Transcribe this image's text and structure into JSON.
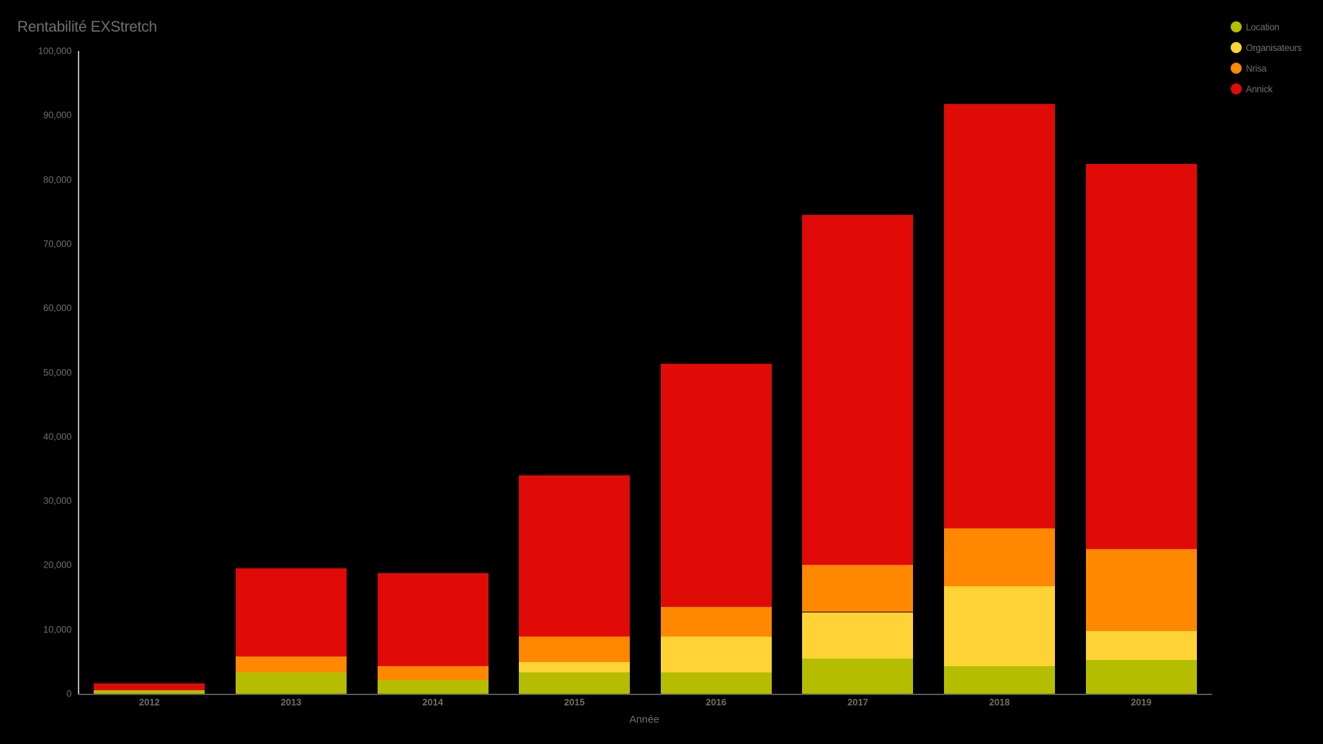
{
  "chart": {
    "title": "Rentabilité EXStretch",
    "xlabel": "Année",
    "yticks": [
      "0",
      "10,000",
      "20,000",
      "30,000",
      "40,000",
      "50,000",
      "60,000",
      "70,000",
      "80,000",
      "90,000",
      "100,000"
    ]
  },
  "legend": [
    {
      "label": "Location",
      "color": "#b5bd00"
    },
    {
      "label": "Organisateurs",
      "color": "#ffd335"
    },
    {
      "label": "Nrisa",
      "color": "#ff8800"
    },
    {
      "label": "Annick",
      "color": "#e00a06"
    }
  ],
  "chart_data": {
    "type": "bar",
    "stacked": true,
    "title": "Rentabilité EXStretch",
    "xlabel": "Année",
    "ylabel": "",
    "ylim": [
      0,
      100000
    ],
    "grid": false,
    "legend_position": "top-right",
    "categories": [
      "2012",
      "2013",
      "2014",
      "2015",
      "2016",
      "2017",
      "2018",
      "2019"
    ],
    "series": [
      {
        "name": "Location",
        "color": "#b5bd00",
        "values": [
          500,
          3300,
          2100,
          3300,
          3300,
          5500,
          4300,
          5300
        ]
      },
      {
        "name": "Organisateurs",
        "color": "#ffd335",
        "values": [
          0,
          0,
          0,
          1600,
          5600,
          7200,
          12400,
          4400
        ]
      },
      {
        "name": "Nrisa",
        "color": "#ff8800",
        "values": [
          0,
          2500,
          2200,
          4000,
          4600,
          7300,
          9000,
          12800
        ]
      },
      {
        "name": "Annick",
        "color": "#e00a06",
        "values": [
          1100,
          13700,
          14500,
          25100,
          37800,
          54500,
          66100,
          59900
        ]
      }
    ]
  }
}
